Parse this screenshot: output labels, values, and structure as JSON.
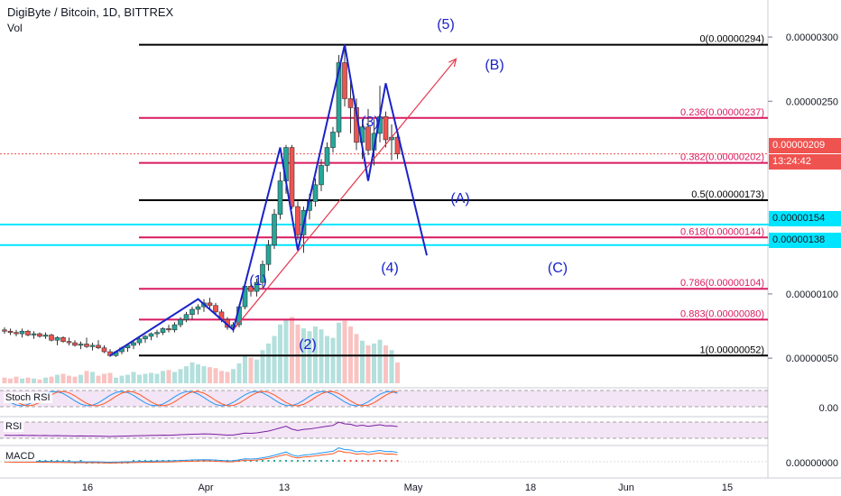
{
  "header": {
    "title": "DigiByte / Bitcoin, 1D, BITTREX",
    "volume_label": "Vol"
  },
  "price_axis": {
    "ticks": [
      "0.00000300",
      "0.00000250",
      "0.00000100",
      "0.00000050"
    ],
    "partial_tick": "0.",
    "last_price_tag": "0.00000209",
    "countdown_tag": "13:24:42",
    "level_tags": [
      "0.00000154",
      "0.00000138"
    ],
    "tag_colors": {
      "price": "#ef5350",
      "level": "#00e5ff"
    }
  },
  "time_axis": {
    "labels": [
      "16",
      "Apr",
      "13",
      "May",
      "18",
      "Jun",
      "15"
    ]
  },
  "fibonacci": {
    "levels": [
      {
        "label": "0(0.00000294)",
        "value": 294,
        "color": "#000000"
      },
      {
        "label": "0.236(0.00000237)",
        "value": 237,
        "color": "#d81b60"
      },
      {
        "label": "0.382(0.00000202)",
        "value": 202,
        "color": "#d81b60"
      },
      {
        "label": "0.5(0.00000173)",
        "value": 173,
        "color": "#000000"
      },
      {
        "label": "0.618(0.00000144)",
        "value": 144,
        "color": "#d81b60"
      },
      {
        "label": "0.786(0.00000104)",
        "value": 104,
        "color": "#d81b60"
      },
      {
        "label": "0.883(0.00000080)",
        "value": 80,
        "color": "#d81b60"
      },
      {
        "label": "1(0.00000052)",
        "value": 52,
        "color": "#000000"
      }
    ]
  },
  "waves": {
    "labels": [
      "(1)",
      "(2)",
      "(3)",
      "(4)",
      "(5)",
      "(A)",
      "(B)",
      "(C)"
    ]
  },
  "indicators": {
    "stoch_rsi": {
      "label": "Stoch RSI",
      "axis_value": "0.00"
    },
    "rsi": {
      "label": "RSI"
    },
    "macd": {
      "label": "MACD",
      "axis_value": "0.00000000"
    }
  },
  "colors": {
    "up": "#26a69a",
    "down": "#ef5350",
    "wave_line": "#1a23c8",
    "trend_line": "#e53950",
    "cyan_level": "#00e5ff"
  },
  "chart_data": {
    "type": "candlestick",
    "title": "DigiByte / Bitcoin, 1D, BITTREX",
    "unit": "BTC (×1e-8)",
    "y_range_satoshi": [
      30,
      305
    ],
    "x_labels": [
      "16",
      "Apr",
      "13",
      "May",
      "18",
      "Jun",
      "15"
    ],
    "candles": [
      {
        "o": 72,
        "h": 74,
        "l": 69,
        "c": 71
      },
      {
        "o": 71,
        "h": 73,
        "l": 68,
        "c": 70
      },
      {
        "o": 70,
        "h": 72,
        "l": 67,
        "c": 69
      },
      {
        "o": 69,
        "h": 73,
        "l": 66,
        "c": 71
      },
      {
        "o": 71,
        "h": 72,
        "l": 67,
        "c": 68
      },
      {
        "o": 68,
        "h": 71,
        "l": 65,
        "c": 69
      },
      {
        "o": 69,
        "h": 70,
        "l": 66,
        "c": 67
      },
      {
        "o": 67,
        "h": 70,
        "l": 65,
        "c": 68
      },
      {
        "o": 68,
        "h": 69,
        "l": 63,
        "c": 64
      },
      {
        "o": 64,
        "h": 67,
        "l": 60,
        "c": 66
      },
      {
        "o": 66,
        "h": 67,
        "l": 62,
        "c": 63
      },
      {
        "o": 63,
        "h": 66,
        "l": 60,
        "c": 62
      },
      {
        "o": 62,
        "h": 64,
        "l": 59,
        "c": 60
      },
      {
        "o": 60,
        "h": 63,
        "l": 57,
        "c": 61
      },
      {
        "o": 61,
        "h": 66,
        "l": 58,
        "c": 59
      },
      {
        "o": 59,
        "h": 62,
        "l": 56,
        "c": 60
      },
      {
        "o": 60,
        "h": 64,
        "l": 57,
        "c": 58
      },
      {
        "o": 58,
        "h": 60,
        "l": 54,
        "c": 55
      },
      {
        "o": 55,
        "h": 57,
        "l": 51,
        "c": 52
      },
      {
        "o": 52,
        "h": 56,
        "l": 51,
        "c": 55
      },
      {
        "o": 55,
        "h": 59,
        "l": 53,
        "c": 58
      },
      {
        "o": 58,
        "h": 61,
        "l": 55,
        "c": 60
      },
      {
        "o": 60,
        "h": 64,
        "l": 57,
        "c": 62
      },
      {
        "o": 62,
        "h": 66,
        "l": 60,
        "c": 65
      },
      {
        "o": 65,
        "h": 68,
        "l": 62,
        "c": 67
      },
      {
        "o": 67,
        "h": 70,
        "l": 64,
        "c": 69
      },
      {
        "o": 69,
        "h": 72,
        "l": 66,
        "c": 70
      },
      {
        "o": 70,
        "h": 74,
        "l": 68,
        "c": 73
      },
      {
        "o": 73,
        "h": 76,
        "l": 70,
        "c": 72
      },
      {
        "o": 72,
        "h": 78,
        "l": 70,
        "c": 76
      },
      {
        "o": 76,
        "h": 82,
        "l": 74,
        "c": 80
      },
      {
        "o": 80,
        "h": 86,
        "l": 78,
        "c": 84
      },
      {
        "o": 84,
        "h": 90,
        "l": 80,
        "c": 88
      },
      {
        "o": 88,
        "h": 92,
        "l": 84,
        "c": 90
      },
      {
        "o": 90,
        "h": 96,
        "l": 86,
        "c": 93
      },
      {
        "o": 93,
        "h": 97,
        "l": 88,
        "c": 91
      },
      {
        "o": 91,
        "h": 93,
        "l": 84,
        "c": 86
      },
      {
        "o": 86,
        "h": 88,
        "l": 78,
        "c": 80
      },
      {
        "o": 80,
        "h": 82,
        "l": 72,
        "c": 74
      },
      {
        "o": 74,
        "h": 78,
        "l": 70,
        "c": 76
      },
      {
        "o": 76,
        "h": 92,
        "l": 74,
        "c": 90
      },
      {
        "o": 90,
        "h": 108,
        "l": 88,
        "c": 106
      },
      {
        "o": 106,
        "h": 112,
        "l": 98,
        "c": 102
      },
      {
        "o": 102,
        "h": 112,
        "l": 98,
        "c": 109
      },
      {
        "o": 109,
        "h": 126,
        "l": 105,
        "c": 123
      },
      {
        "o": 123,
        "h": 142,
        "l": 118,
        "c": 138
      },
      {
        "o": 138,
        "h": 166,
        "l": 135,
        "c": 162
      },
      {
        "o": 162,
        "h": 195,
        "l": 158,
        "c": 188
      },
      {
        "o": 188,
        "h": 216,
        "l": 178,
        "c": 214
      },
      {
        "o": 214,
        "h": 216,
        "l": 166,
        "c": 168
      },
      {
        "o": 168,
        "h": 172,
        "l": 142,
        "c": 146
      },
      {
        "o": 146,
        "h": 168,
        "l": 132,
        "c": 165
      },
      {
        "o": 165,
        "h": 178,
        "l": 158,
        "c": 172
      },
      {
        "o": 172,
        "h": 190,
        "l": 168,
        "c": 185
      },
      {
        "o": 185,
        "h": 205,
        "l": 180,
        "c": 200
      },
      {
        "o": 200,
        "h": 218,
        "l": 195,
        "c": 214
      },
      {
        "o": 214,
        "h": 230,
        "l": 210,
        "c": 226
      },
      {
        "o": 226,
        "h": 286,
        "l": 222,
        "c": 280
      },
      {
        "o": 280,
        "h": 294,
        "l": 246,
        "c": 252
      },
      {
        "o": 252,
        "h": 268,
        "l": 225,
        "c": 245
      },
      {
        "o": 245,
        "h": 252,
        "l": 212,
        "c": 218
      },
      {
        "o": 218,
        "h": 236,
        "l": 205,
        "c": 230
      },
      {
        "o": 230,
        "h": 244,
        "l": 208,
        "c": 212
      },
      {
        "o": 212,
        "h": 236,
        "l": 200,
        "c": 225
      },
      {
        "o": 225,
        "h": 262,
        "l": 218,
        "c": 238
      },
      {
        "o": 238,
        "h": 242,
        "l": 214,
        "c": 220
      },
      {
        "o": 220,
        "h": 232,
        "l": 204,
        "c": 222
      },
      {
        "o": 222,
        "h": 228,
        "l": 205,
        "c": 209
      }
    ],
    "volume": [
      6,
      5,
      7,
      5,
      6,
      5,
      4,
      6,
      7,
      9,
      10,
      8,
      7,
      9,
      13,
      12,
      8,
      10,
      11,
      6,
      8,
      9,
      12,
      9,
      10,
      11,
      10,
      13,
      14,
      12,
      15,
      18,
      22,
      20,
      18,
      17,
      16,
      13,
      12,
      15,
      21,
      30,
      27,
      25,
      35,
      42,
      50,
      62,
      68,
      70,
      62,
      58,
      55,
      60,
      57,
      50,
      48,
      64,
      66,
      60,
      52,
      45,
      40,
      42,
      46,
      40,
      35,
      22
    ],
    "wave_path": [
      {
        "i": 18,
        "v": 52
      },
      {
        "i": 33,
        "v": 96
      },
      {
        "i": 39,
        "v": 72
      },
      {
        "i": 47,
        "v": 214
      },
      {
        "i": 50,
        "v": 134
      },
      {
        "i": 58,
        "v": 294
      },
      {
        "i": 62,
        "v": 188
      },
      {
        "i": 65,
        "v": 264
      },
      {
        "i": 72,
        "v": 130
      }
    ],
    "trend_line": [
      {
        "i": 39,
        "v": 72
      },
      {
        "i": 77,
        "v": 283
      }
    ]
  }
}
